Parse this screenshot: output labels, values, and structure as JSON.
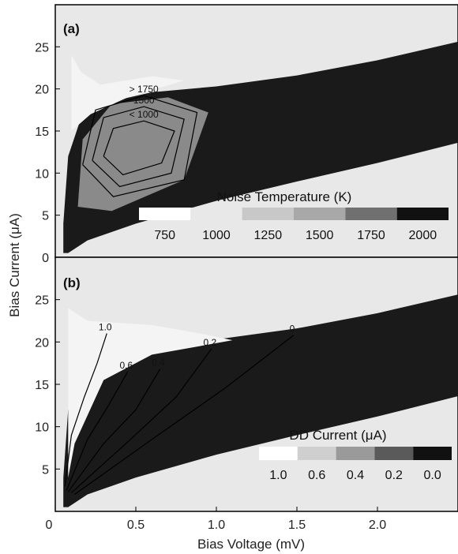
{
  "chart_data": [
    {
      "panel": "(a)",
      "type": "heatmap",
      "xlabel": "Bias Voltage (mV)",
      "ylabel": "Bias Current (μA)",
      "xlim": [
        0,
        2.5
      ],
      "ylim": [
        0,
        30
      ],
      "yticks": [
        "0",
        "5",
        "10",
        "15",
        "20",
        "25"
      ],
      "colorbar": {
        "title": "Noise Temperature (K)",
        "labels": [
          "750",
          "1000",
          "1250",
          "1500",
          "1750",
          "2000"
        ],
        "colors": [
          "#ffffff",
          "#e8e8e8",
          "#c8c8c8",
          "#a8a8a8",
          "#707070",
          "#111111"
        ]
      },
      "contours": [
        {
          "label": "< 1000",
          "points": [
            [
              0.3,
              12.0
            ],
            [
              0.36,
              15.3
            ],
            [
              0.55,
              16.2
            ],
            [
              0.74,
              15.0
            ],
            [
              0.66,
              11.2
            ],
            [
              0.42,
              9.8
            ],
            [
              0.3,
              12.0
            ]
          ]
        },
        {
          "label": "1500",
          "points": [
            [
              0.23,
              11.5
            ],
            [
              0.3,
              16.6
            ],
            [
              0.55,
              17.9
            ],
            [
              0.8,
              16.4
            ],
            [
              0.72,
              10.0
            ],
            [
              0.4,
              8.4
            ],
            [
              0.23,
              11.5
            ]
          ]
        },
        {
          "label": "> 1750",
          "points": [
            [
              0.17,
              11.0
            ],
            [
              0.25,
              17.5
            ],
            [
              0.55,
              19.2
            ],
            [
              0.88,
              17.2
            ],
            [
              0.8,
              9.2
            ],
            [
              0.36,
              7.2
            ],
            [
              0.17,
              11.0
            ]
          ]
        }
      ],
      "background_color": "#e8e8e8",
      "grid": false
    },
    {
      "panel": "(b)",
      "type": "heatmap",
      "xlabel": "Bias Voltage (mV)",
      "ylabel": "Bias Current (μA)",
      "xlim": [
        0,
        2.5
      ],
      "ylim": [
        0,
        30
      ],
      "xticks": [
        "0",
        "0.5",
        "1.0",
        "1.5",
        "2.0"
      ],
      "yticks": [
        "5",
        "10",
        "15",
        "20",
        "25"
      ],
      "colorbar": {
        "title": "DD Current (μA)",
        "labels": [
          "1.0",
          "0.6",
          "0.4",
          "0.2",
          "0.0"
        ],
        "colors": [
          "#ffffff",
          "#cfcfcf",
          "#9a9a9a",
          "#5a5a5a",
          "#111111"
        ]
      },
      "contours": [
        {
          "label": "1.0",
          "points": [
            [
              0.06,
              3.0
            ],
            [
              0.1,
              9.0
            ],
            [
              0.18,
              13.5
            ],
            [
              0.26,
              17.5
            ],
            [
              0.32,
              21.0
            ]
          ]
        },
        {
          "label": "0.6",
          "points": [
            [
              0.07,
              2.5
            ],
            [
              0.2,
              8.5
            ],
            [
              0.33,
              12.5
            ],
            [
              0.45,
              16.5
            ]
          ]
        },
        {
          "label": "0.4",
          "points": [
            [
              0.08,
              2.3
            ],
            [
              0.3,
              8.0
            ],
            [
              0.5,
              12.0
            ],
            [
              0.65,
              16.8
            ]
          ]
        },
        {
          "label": "0.2",
          "points": [
            [
              0.1,
              2.2
            ],
            [
              0.45,
              8.2
            ],
            [
              0.75,
              13.5
            ],
            [
              0.97,
              19.2
            ]
          ]
        },
        {
          "label": "0",
          "points": [
            [
              0.12,
              2.0
            ],
            [
              0.6,
              8.5
            ],
            [
              1.05,
              14.5
            ],
            [
              1.48,
              20.8
            ]
          ]
        }
      ],
      "background_color": "#e8e8e8",
      "grid": false
    }
  ],
  "axes": {
    "x_title": "Bias Voltage (mV)",
    "y_title": "Bias Current (μA)"
  }
}
